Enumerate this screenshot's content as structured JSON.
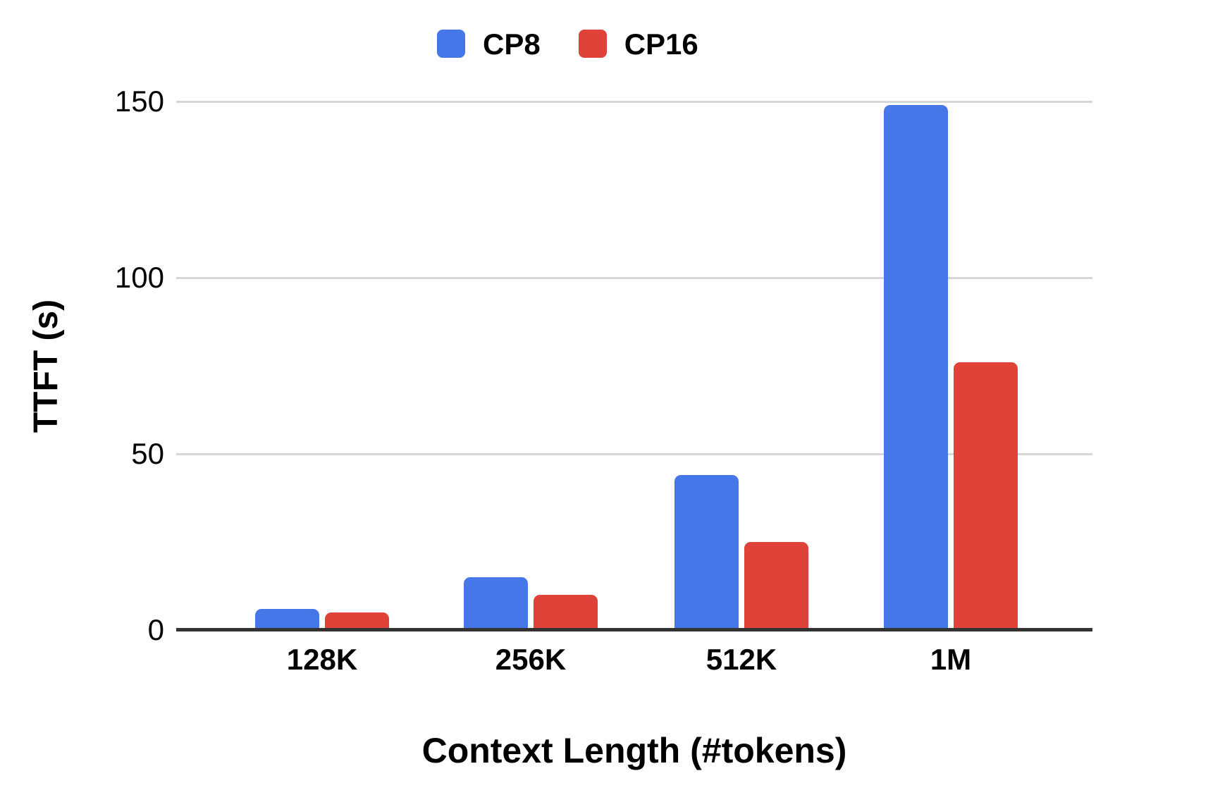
{
  "chart_data": {
    "type": "bar",
    "title": "",
    "categories": [
      "128K",
      "256K",
      "512K",
      "1M"
    ],
    "series": [
      {
        "name": "CP8",
        "color": "#4577E8",
        "values": [
          6,
          15,
          44,
          149
        ]
      },
      {
        "name": "CP16",
        "color": "#DF4238",
        "values": [
          5,
          10,
          25,
          76
        ]
      }
    ],
    "xlabel": "Context Length (#tokens)",
    "ylabel": "TTFT (s)",
    "yticks": [
      "0",
      "50",
      "100",
      "150"
    ],
    "ylim": [
      0,
      150
    ],
    "legend_position": "top",
    "grid": true,
    "colors": {
      "gridline": "#d6d6d6",
      "axis_line": "#333333",
      "text": "#000000",
      "background": "#ffffff"
    }
  }
}
